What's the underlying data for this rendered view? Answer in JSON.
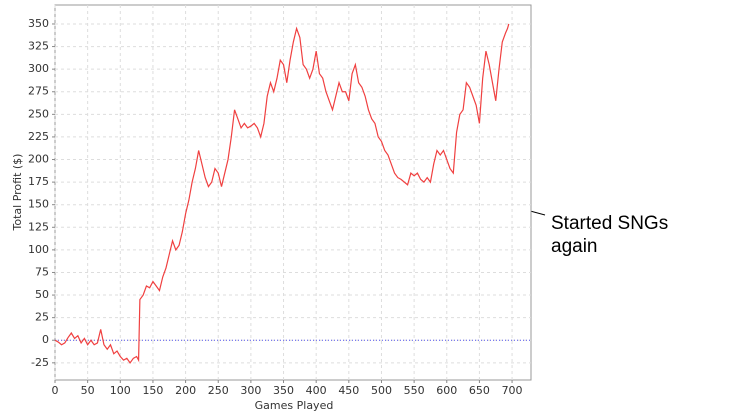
{
  "chart_data": {
    "type": "line",
    "x_label": "Games Played",
    "y_label": "Total Profit ($)",
    "annotation": "Started SNGs again",
    "x": [
      0,
      5,
      10,
      15,
      20,
      25,
      30,
      35,
      40,
      45,
      50,
      55,
      60,
      65,
      70,
      75,
      80,
      85,
      90,
      95,
      100,
      105,
      110,
      115,
      120,
      125,
      128,
      130,
      135,
      140,
      145,
      150,
      155,
      160,
      165,
      170,
      175,
      180,
      185,
      190,
      195,
      200,
      205,
      210,
      215,
      220,
      225,
      230,
      235,
      240,
      245,
      250,
      255,
      260,
      265,
      270,
      275,
      280,
      285,
      290,
      295,
      300,
      305,
      310,
      315,
      320,
      325,
      330,
      335,
      340,
      345,
      350,
      355,
      360,
      365,
      370,
      375,
      380,
      385,
      390,
      395,
      400,
      405,
      410,
      415,
      420,
      425,
      430,
      435,
      440,
      445,
      450,
      455,
      460,
      465,
      470,
      475,
      480,
      485,
      490,
      495,
      500,
      505,
      510,
      515,
      520,
      525,
      530,
      535,
      540,
      545,
      550,
      555,
      560,
      565,
      570,
      575,
      580,
      585,
      590,
      595,
      600,
      605,
      610,
      615,
      620,
      625,
      630,
      635,
      640,
      645,
      650,
      655,
      660,
      665,
      670,
      675,
      680,
      685,
      690,
      693,
      695
    ],
    "series": [
      {
        "name": "Total Profit",
        "color": "#f04040",
        "values": [
          0,
          -2,
          -5,
          -3,
          3,
          8,
          2,
          5,
          -3,
          2,
          -5,
          0,
          -5,
          -3,
          12,
          -5,
          -10,
          -5,
          -15,
          -12,
          -18,
          -22,
          -20,
          -25,
          -20,
          -18,
          -22,
          45,
          50,
          60,
          58,
          65,
          60,
          55,
          70,
          80,
          95,
          110,
          100,
          105,
          120,
          140,
          155,
          175,
          190,
          210,
          195,
          180,
          170,
          175,
          190,
          185,
          170,
          185,
          200,
          225,
          255,
          245,
          235,
          240,
          235,
          237,
          240,
          235,
          225,
          240,
          270,
          285,
          275,
          290,
          310,
          305,
          285,
          310,
          330,
          345,
          335,
          305,
          300,
          290,
          300,
          320,
          295,
          290,
          275,
          265,
          255,
          270,
          285,
          275,
          275,
          265,
          295,
          305,
          285,
          280,
          270,
          255,
          245,
          240,
          225,
          220,
          210,
          205,
          195,
          185,
          180,
          178,
          175,
          172,
          185,
          182,
          185,
          178,
          175,
          180,
          175,
          195,
          210,
          205,
          210,
          200,
          190,
          185,
          230,
          250,
          255,
          285,
          280,
          270,
          260,
          240,
          290,
          320,
          305,
          285,
          265,
          300,
          330,
          340,
          345,
          350
        ]
      }
    ],
    "xlim": [
      0,
      729
    ],
    "ylim": [
      -44,
      371
    ],
    "xticks": [
      0,
      50,
      100,
      150,
      200,
      250,
      300,
      350,
      400,
      450,
      500,
      550,
      600,
      650,
      700
    ],
    "yticks": [
      -25,
      0,
      25,
      50,
      75,
      100,
      125,
      150,
      175,
      200,
      225,
      250,
      275,
      300,
      325,
      350
    ],
    "grid": true,
    "zero_line_color": "#5555ee"
  }
}
